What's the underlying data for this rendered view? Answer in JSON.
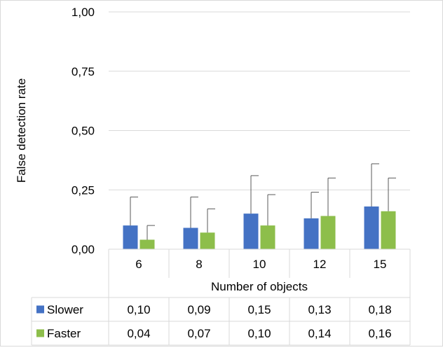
{
  "chart_data": {
    "type": "bar",
    "title": "",
    "xlabel": "Number of objects",
    "ylabel": "False detection rate",
    "ylim": [
      0,
      1
    ],
    "y_ticks": [
      "0,00",
      "0,25",
      "0,50",
      "0,75",
      "1,00"
    ],
    "y_tick_values": [
      0,
      0.25,
      0.5,
      0.75,
      1.0
    ],
    "grid": true,
    "legend": "data-table",
    "categories": [
      "6",
      "8",
      "10",
      "12",
      "15"
    ],
    "series": [
      {
        "name": "Slower",
        "color": "#4472C4",
        "values": [
          0.1,
          0.09,
          0.15,
          0.13,
          0.18
        ],
        "labels": [
          "0,10",
          "0,09",
          "0,15",
          "0,13",
          "0,18"
        ],
        "error_upper": [
          0.22,
          0.22,
          0.31,
          0.24,
          0.36
        ]
      },
      {
        "name": "Faster",
        "color": "#8DBE4B",
        "values": [
          0.04,
          0.07,
          0.1,
          0.14,
          0.16
        ],
        "labels": [
          "0,04",
          "0,07",
          "0,10",
          "0,14",
          "0,16"
        ],
        "error_upper": [
          0.1,
          0.17,
          0.23,
          0.3,
          0.3
        ]
      }
    ]
  }
}
